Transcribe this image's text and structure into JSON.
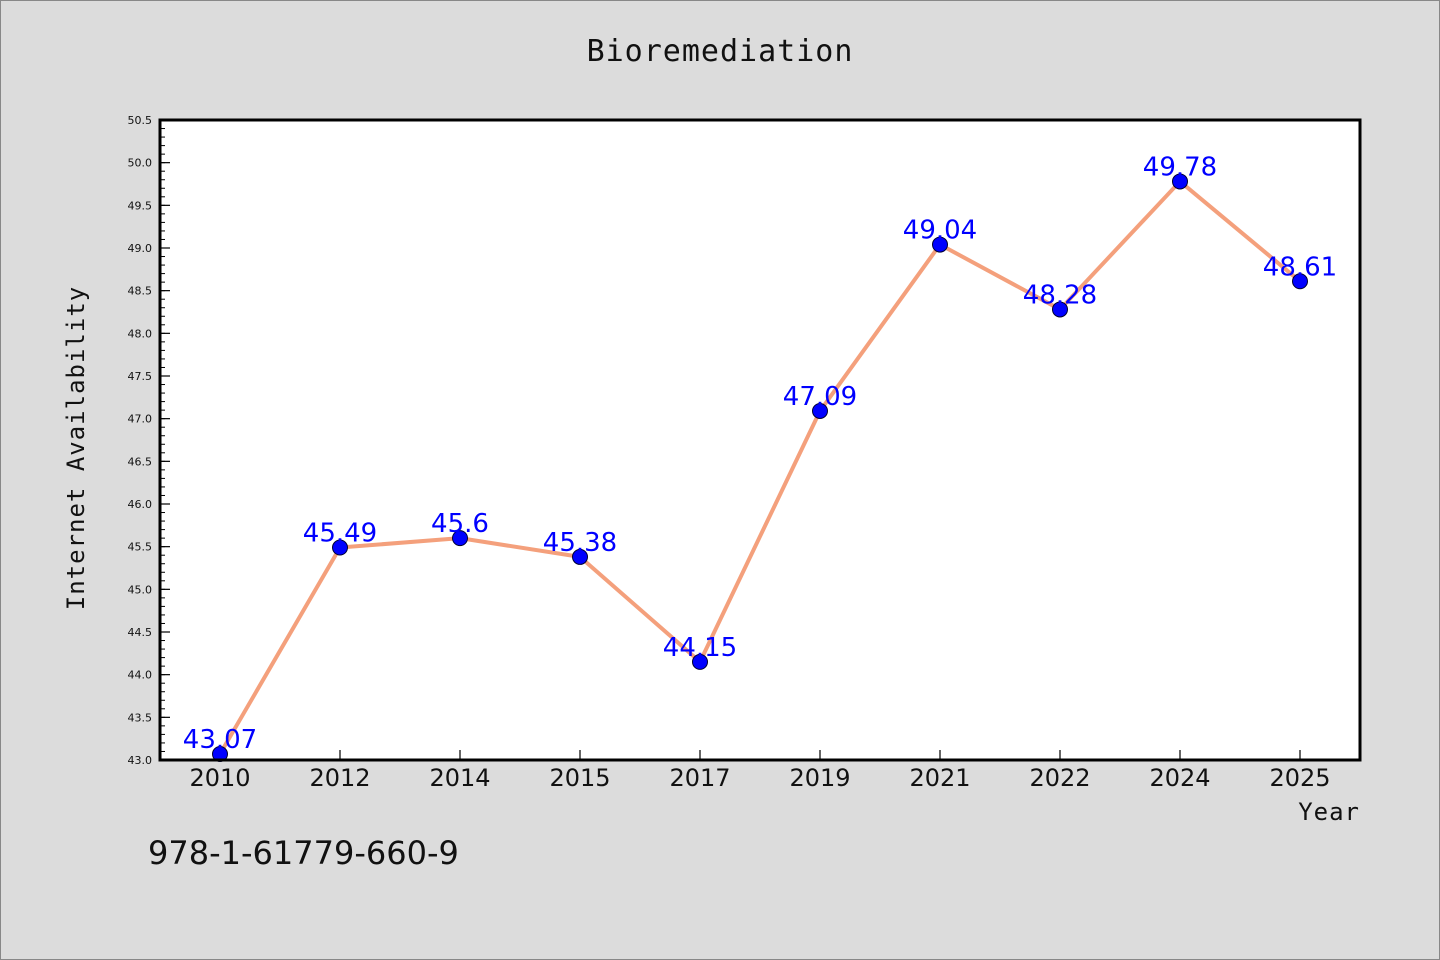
{
  "chart_data": {
    "type": "line",
    "title": "Bioremediation",
    "xlabel": "Year",
    "ylabel": "Internet Availability",
    "categories": [
      "2010",
      "2012",
      "2014",
      "2015",
      "2017",
      "2019",
      "2021",
      "2022",
      "2024",
      "2025"
    ],
    "series": [
      {
        "values": [
          43.07,
          45.49,
          45.6,
          45.38,
          44.15,
          47.09,
          49.04,
          48.28,
          49.78,
          48.61
        ],
        "data_labels": [
          "43.07",
          "45.49",
          "45.6",
          "45.38",
          "44.15",
          "47.09",
          "49.04",
          "48.28",
          "49.78",
          "48.61"
        ],
        "line_color": "#f4a07c",
        "marker_color": "#0000ff"
      }
    ],
    "ylim": [
      43.0,
      50.5
    ],
    "yticks": [
      "43.0",
      "43.5",
      "44.0",
      "44.5",
      "45.0",
      "45.5",
      "46.0",
      "46.5",
      "47.0",
      "47.5",
      "48.0",
      "48.5",
      "49.0",
      "49.5",
      "50.0",
      "50.5"
    ],
    "grid": false,
    "legend": "none",
    "plot_background": "#ffffff",
    "page_background": "#dcdcdc"
  },
  "footer": {
    "code": "978-1-61779-660-9"
  }
}
